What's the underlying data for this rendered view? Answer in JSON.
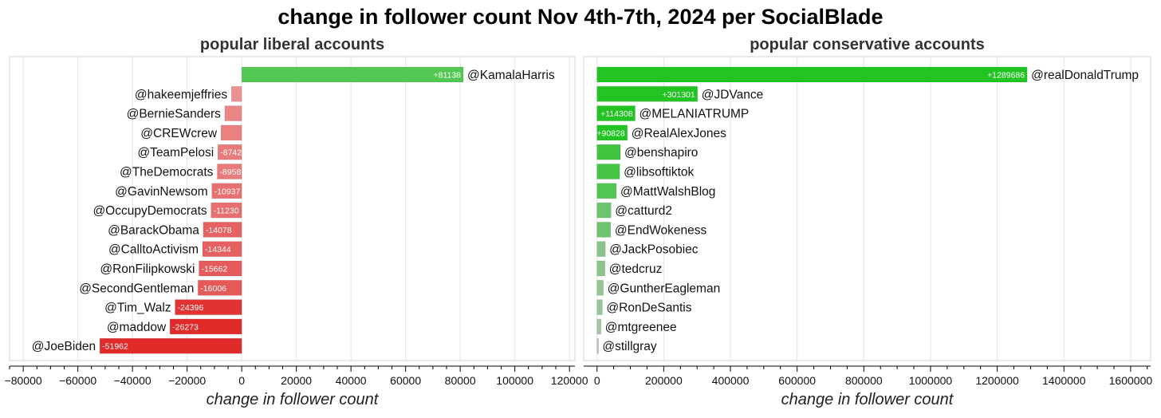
{
  "title": "change in follower count Nov 4th-7th, 2024 per SocialBlade",
  "chart_data": [
    {
      "type": "bar",
      "orientation": "horizontal",
      "title": "popular liberal accounts",
      "xlabel": "change in follower count",
      "ylabel": "",
      "xlim": [
        -85000,
        122000
      ],
      "xticks": [
        -80000,
        -60000,
        -40000,
        -20000,
        0,
        20000,
        40000,
        60000,
        80000,
        100000,
        120000
      ],
      "grid": true,
      "categories": [
        "@KamalaHarris",
        "@hakeemjeffries",
        "@BernieSanders",
        "@CREWcrew",
        "@TeamPelosi",
        "@TheDemocrats",
        "@GavinNewsom",
        "@OccupyDemocrats",
        "@BarackObama",
        "@CalltoActivism",
        "@RonFilipkowski",
        "@SecondGentleman",
        "@Tim_Walz",
        "@maddow",
        "@JoeBiden"
      ],
      "values": [
        81138,
        -3800,
        -6200,
        -7600,
        -8742,
        -8958,
        -10937,
        -11230,
        -14078,
        -14344,
        -15662,
        -16006,
        -24396,
        -26273,
        -51962
      ],
      "data_labels": [
        "+81138",
        "",
        "",
        "",
        "-8742",
        "-8958",
        "-10937",
        "-11230",
        "-14078",
        "-14344",
        "-15662",
        "-16006",
        "-24396",
        "-26273",
        "-51962"
      ],
      "colors": {
        "positive": "#3dbf3d",
        "negative": "#e02020"
      }
    },
    {
      "type": "bar",
      "orientation": "horizontal",
      "title": "popular conservative accounts",
      "xlabel": "change in follower count",
      "ylabel": "",
      "xlim": [
        -40000,
        1660000
      ],
      "xticks": [
        0,
        200000,
        400000,
        600000,
        800000,
        1000000,
        1200000,
        1400000,
        1600000
      ],
      "grid": true,
      "categories": [
        "@realDonaldTrump",
        "@JDVance",
        "@MELANIATRUMP",
        "@RealAlexJones",
        "@benshapiro",
        "@libsoftiktok",
        "@MattWalshBlog",
        "@catturd2",
        "@EndWokeness",
        "@JackPosobiec",
        "@tedcruz",
        "@GuntherEagleman",
        "@RonDeSantis",
        "@mtgreenee",
        "@stillgray"
      ],
      "values": [
        1289686,
        301301,
        114308,
        90828,
        70000,
        68000,
        58000,
        42000,
        41000,
        25000,
        24000,
        19000,
        16000,
        12000,
        4000
      ],
      "data_labels": [
        "+1289686",
        "+301301",
        "+114308",
        "+90828",
        "",
        "",
        "",
        "",
        "",
        "",
        "",
        "",
        "",
        "",
        ""
      ],
      "colors": {
        "positive": "#22c422",
        "low": "#bdbdbd"
      }
    }
  ]
}
